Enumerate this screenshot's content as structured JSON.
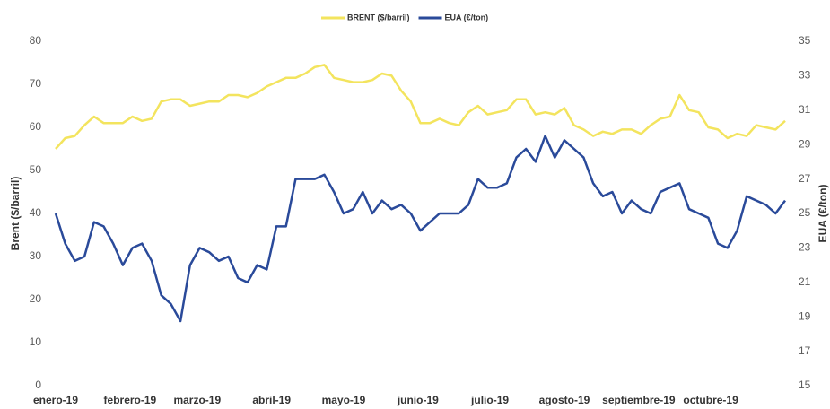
{
  "chart_data": {
    "type": "line",
    "x": [
      0,
      4,
      8,
      12,
      16,
      20,
      24,
      28,
      32,
      36,
      40,
      44,
      48,
      52,
      56,
      60,
      64,
      68,
      72,
      76,
      80,
      84,
      88,
      92,
      96,
      100,
      104,
      108,
      112,
      116,
      120,
      124,
      128,
      132,
      136,
      140,
      144,
      148,
      152,
      156,
      160,
      164,
      168,
      172,
      176,
      180,
      184,
      188,
      192,
      196,
      200,
      204,
      208,
      212,
      216,
      220,
      224,
      228,
      232,
      236,
      240,
      244,
      248,
      252,
      256,
      260,
      264,
      268,
      272,
      276,
      280,
      284,
      288,
      292,
      296,
      300,
      304
    ],
    "xlim": [
      0,
      304
    ],
    "xticks": [
      {
        "value": 0,
        "label": "enero-19"
      },
      {
        "value": 31,
        "label": "febrero-19"
      },
      {
        "value": 59,
        "label": "marzo-19"
      },
      {
        "value": 90,
        "label": "abril-19"
      },
      {
        "value": 120,
        "label": "mayo-19"
      },
      {
        "value": 151,
        "label": "junio-19"
      },
      {
        "value": 181,
        "label": "julio-19"
      },
      {
        "value": 212,
        "label": "agosto-19"
      },
      {
        "value": 243,
        "label": "septiembre-19"
      },
      {
        "value": 273,
        "label": "octubre-19"
      }
    ],
    "ylabel": "Brent ($/barril)",
    "y2label": "EUA (€/ton)",
    "ylim": [
      0,
      80
    ],
    "yticks": [
      0,
      10,
      20,
      30,
      40,
      50,
      60,
      70,
      80
    ],
    "y2lim": [
      15,
      35
    ],
    "y2ticks": [
      15,
      17,
      19,
      21,
      23,
      25,
      27,
      29,
      31,
      33,
      35
    ],
    "legend": "top",
    "series": [
      {
        "name": "BRENT ($/barril)",
        "color": "#f3e45e",
        "values": [
          55,
          57.5,
          58,
          60.5,
          62.5,
          61,
          61,
          61,
          62.5,
          61.5,
          62,
          66,
          66.5,
          66.5,
          65,
          65.5,
          66,
          66,
          67.5,
          67.5,
          67,
          68,
          69.5,
          70.5,
          71.5,
          71.5,
          72.5,
          74,
          74.5,
          71.5,
          71,
          70.5,
          70.5,
          71,
          72.5,
          72,
          68.5,
          66,
          61,
          61,
          62,
          61,
          60.5,
          63.5,
          65,
          63,
          63.5,
          64,
          66.5,
          66.5,
          63,
          63.5,
          63,
          64.5,
          60.5,
          59.5,
          58,
          59,
          58.5,
          59.5,
          59.5,
          58.5,
          60.5,
          62,
          62.5,
          67.5,
          64,
          63.5,
          60,
          59.5,
          57.5,
          58.5,
          58,
          60.5,
          60,
          59.5,
          61.5
        ]
      },
      {
        "name": "EUA (€/ton)",
        "color": "#2a4a9a",
        "axis": "y2",
        "values": [
          25,
          23.25,
          22.25,
          22.5,
          24.5,
          24.25,
          23.25,
          22,
          23,
          23.25,
          22.25,
          20.25,
          19.75,
          18.75,
          22,
          23,
          22.75,
          22.25,
          22.5,
          21.25,
          21,
          22,
          21.75,
          24.25,
          24.25,
          27,
          27,
          27,
          27.25,
          26.25,
          25,
          25.25,
          26.25,
          25,
          25.75,
          25.25,
          25.5,
          25,
          24,
          24.5,
          25,
          25,
          25,
          25.5,
          27,
          26.5,
          26.5,
          26.75,
          28.25,
          28.75,
          28,
          29.5,
          28.25,
          29.25,
          28.75,
          28.25,
          26.75,
          26,
          26.25,
          25,
          25.75,
          25.25,
          25,
          26.25,
          26.5,
          26.75,
          25.25,
          25,
          24.75,
          23.25,
          23,
          24,
          26,
          25.75,
          25.5,
          25,
          25.75
        ]
      }
    ]
  }
}
